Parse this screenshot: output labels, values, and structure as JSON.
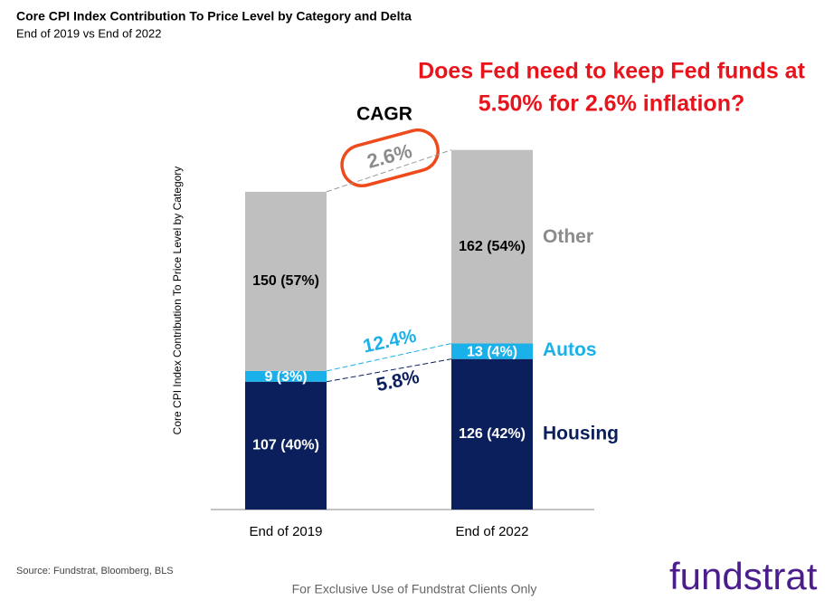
{
  "chart_data": {
    "type": "stacked-bar",
    "title": "Core CPI Index Contribution To Price Level by Category and Delta",
    "subtitle": "End of 2019 vs End of 2022",
    "y_label": "Core CPI Index Contribution To Price Level by Category",
    "categories": [
      "End of 2019",
      "End of 2022"
    ],
    "series": [
      {
        "name": "Housing",
        "color": "#0b1f5c",
        "values": [
          107,
          126
        ],
        "value_labels": [
          "107 (40%)",
          "126 (42%)"
        ]
      },
      {
        "name": "Autos",
        "color": "#1ab0ea",
        "values": [
          9,
          13
        ],
        "value_labels": [
          "9 (3%)",
          "13 (4%)"
        ]
      },
      {
        "name": "Other",
        "color": "#bfbfbf",
        "values": [
          150,
          162
        ],
        "value_labels": [
          "150 (57%)",
          "162 (54%)"
        ]
      }
    ],
    "annotations": {
      "cagr_title": "CAGR",
      "total": "2.6%",
      "autos": "12.4%",
      "housing": "5.8%"
    },
    "question": [
      "Does Fed need to keep Fed funds at",
      "5.50% for 2.6% inflation?"
    ]
  },
  "source": "Source: Fundstrat, Bloomberg, BLS",
  "footer": "For Exclusive Use of Fundstrat Clients Only",
  "logo": "fundstrat"
}
